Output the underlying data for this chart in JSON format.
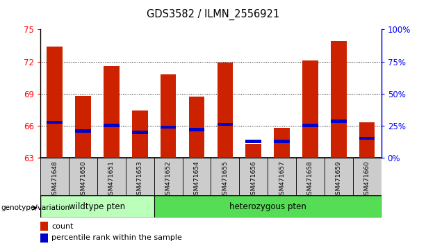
{
  "title": "GDS3582 / ILMN_2556921",
  "categories": [
    "GSM471648",
    "GSM471650",
    "GSM471651",
    "GSM471653",
    "GSM471652",
    "GSM471654",
    "GSM471655",
    "GSM471656",
    "GSM471657",
    "GSM471658",
    "GSM471659",
    "GSM471660"
  ],
  "count_values": [
    73.4,
    68.8,
    71.6,
    67.4,
    70.8,
    68.7,
    71.9,
    64.3,
    65.8,
    72.1,
    73.9,
    66.3
  ],
  "percentile_values": [
    66.3,
    65.5,
    66.0,
    65.35,
    65.85,
    65.6,
    66.1,
    64.5,
    64.5,
    66.0,
    66.4,
    64.8
  ],
  "ylim_left": [
    63,
    75
  ],
  "ylim_right": [
    0,
    100
  ],
  "yticks_left": [
    63,
    66,
    69,
    72,
    75
  ],
  "yticks_right": [
    0,
    25,
    50,
    75,
    100
  ],
  "ytick_labels_right": [
    "0%",
    "25%",
    "50%",
    "75%",
    "100%"
  ],
  "bar_color": "#cc2200",
  "percentile_color": "#0000cc",
  "wildtype_color": "#bbffbb",
  "heterozygous_color": "#55dd55",
  "tick_bg_color": "#cccccc",
  "wildtype_label": "wildtype pten",
  "heterozygous_label": "heterozygous pten",
  "wildtype_count": 4,
  "legend_count_label": "count",
  "legend_percentile_label": "percentile rank within the sample",
  "genotype_label": "genotype/variation",
  "bar_width": 0.55,
  "grid_color": "black",
  "grid_linewidth": 0.7
}
